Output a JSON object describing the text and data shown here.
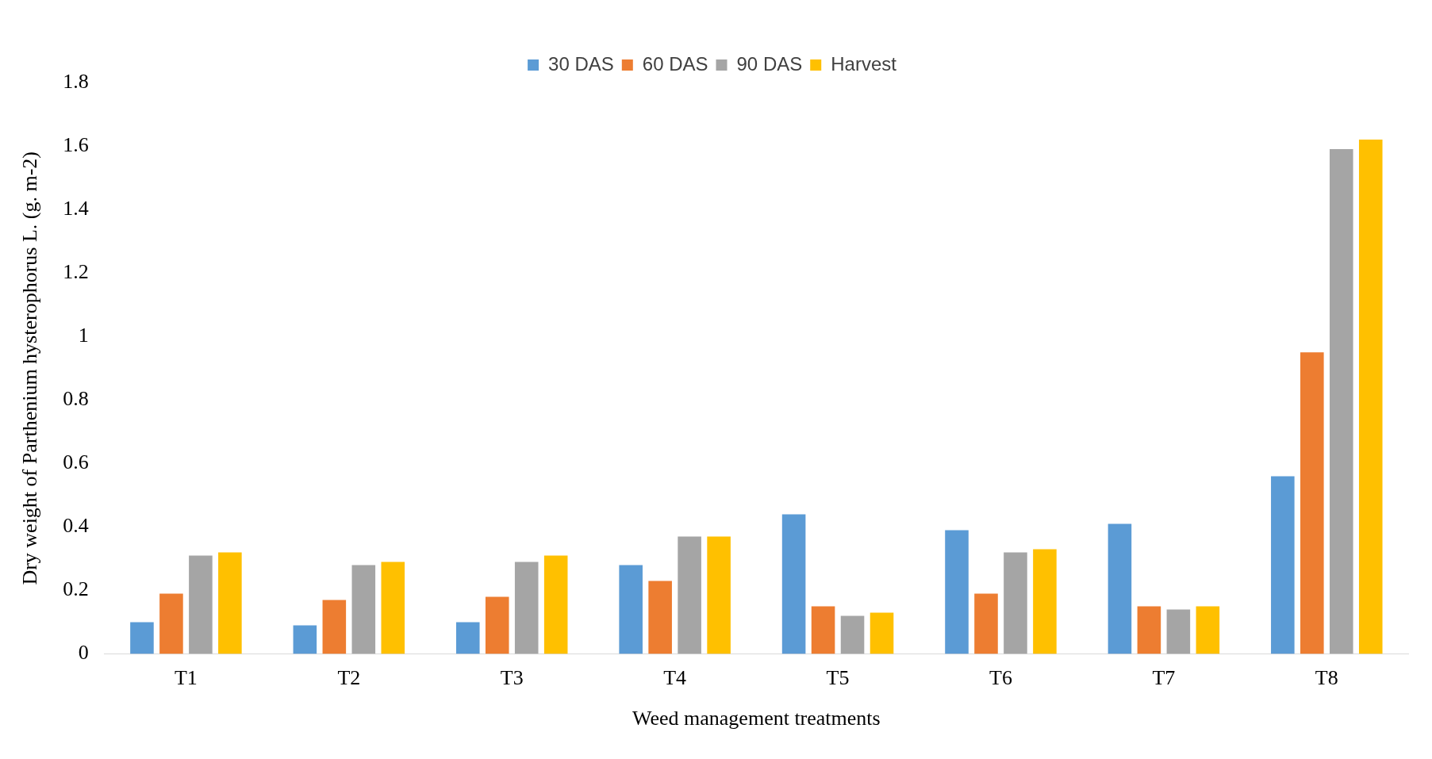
{
  "chart_data": {
    "type": "bar",
    "xlabel": "Weed management treatments",
    "ylabel": "Dry weight of Parthenium hysterophorus L. (g. m-2)",
    "categories": [
      "T1",
      "T2",
      "T3",
      "T4",
      "T5",
      "T6",
      "T7",
      "T8"
    ],
    "series": [
      {
        "name": "30 DAS",
        "color": "#5b9bd5",
        "values": [
          0.1,
          0.09,
          0.1,
          0.28,
          0.44,
          0.39,
          0.41,
          0.56
        ]
      },
      {
        "name": "60 DAS",
        "color": "#ed7d31",
        "values": [
          0.19,
          0.17,
          0.18,
          0.23,
          0.15,
          0.19,
          0.15,
          0.95
        ]
      },
      {
        "name": "90 DAS",
        "color": "#a5a5a5",
        "values": [
          0.31,
          0.28,
          0.29,
          0.37,
          0.12,
          0.32,
          0.14,
          1.59
        ]
      },
      {
        "name": "Harvest",
        "color": "#ffc000",
        "values": [
          0.32,
          0.29,
          0.31,
          0.37,
          0.13,
          0.33,
          0.15,
          1.62
        ]
      }
    ],
    "ylim": [
      0,
      1.8
    ],
    "yticks": [
      0,
      0.2,
      0.4,
      0.6,
      0.8,
      1,
      1.2,
      1.4,
      1.6,
      1.8
    ],
    "grid": false,
    "legend": "top"
  }
}
